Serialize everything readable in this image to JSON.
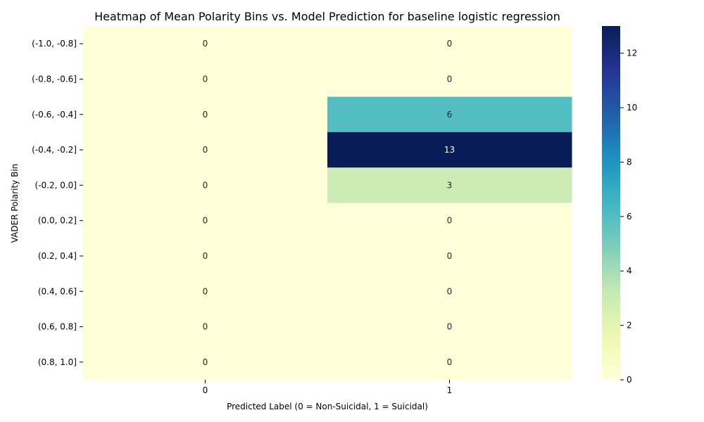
{
  "chart_data": {
    "type": "heatmap",
    "title": "Heatmap of Mean Polarity Bins vs. Model Prediction for baseline logistic regression",
    "xlabel": "Predicted Label (0 = Non-Suicidal, 1 = Suicidal)",
    "ylabel": "VADER Polarity Bin",
    "x_categories": [
      "0",
      "1"
    ],
    "y_categories": [
      "(-1.0, -0.8]",
      "(-0.8, -0.6]",
      "(-0.6, -0.4]",
      "(-0.4, -0.2]",
      "(-0.2, 0.0]",
      "(0.0, 0.2]",
      "(0.2, 0.4]",
      "(0.4, 0.6]",
      "(0.6, 0.8]",
      "(0.8, 1.0]"
    ],
    "values": [
      [
        0,
        0
      ],
      [
        0,
        0
      ],
      [
        0,
        6
      ],
      [
        0,
        13
      ],
      [
        0,
        3
      ],
      [
        0,
        0
      ],
      [
        0,
        0
      ],
      [
        0,
        0
      ],
      [
        0,
        0
      ],
      [
        0,
        0
      ]
    ],
    "colormap": "YlGnBu",
    "vmin": 0,
    "vmax": 13,
    "colorbar_ticks": [
      0,
      2,
      4,
      6,
      8,
      10,
      12
    ],
    "grid": false,
    "annotations": true
  }
}
